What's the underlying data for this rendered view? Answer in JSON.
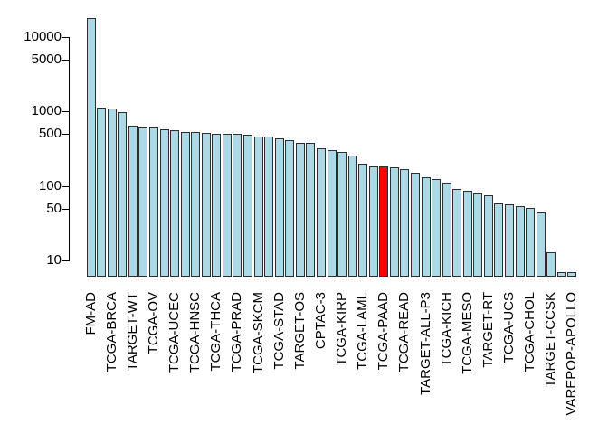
{
  "chart_data": {
    "type": "bar",
    "y_scale": "log",
    "grid": false,
    "legend": "none",
    "ylim": [
      6,
      20000
    ],
    "y_axis": {
      "ticks": [
        10,
        50,
        100,
        500,
        1000,
        5000,
        10000
      ]
    },
    "highlighted_bar": "TCGA-PAAD",
    "bars": [
      {
        "label": "FM-AD",
        "value": 18004
      },
      {
        "label": "",
        "value": 1127
      },
      {
        "label": "TCGA-BRCA",
        "value": 1098
      },
      {
        "label": "",
        "value": 988
      },
      {
        "label": "TARGET-WT",
        "value": 652
      },
      {
        "label": "",
        "value": 617
      },
      {
        "label": "TCGA-OV",
        "value": 608
      },
      {
        "label": "",
        "value": 585
      },
      {
        "label": "TCGA-UCEC",
        "value": 560
      },
      {
        "label": "",
        "value": 537
      },
      {
        "label": "TCGA-HNSC",
        "value": 528
      },
      {
        "label": "",
        "value": 516
      },
      {
        "label": "TCGA-THCA",
        "value": 507
      },
      {
        "label": "",
        "value": 504
      },
      {
        "label": "TCGA-PRAD",
        "value": 500
      },
      {
        "label": "",
        "value": 489
      },
      {
        "label": "TCGA-SKCM",
        "value": 470
      },
      {
        "label": "",
        "value": 461
      },
      {
        "label": "TCGA-STAD",
        "value": 443
      },
      {
        "label": "",
        "value": 412
      },
      {
        "label": "TARGET-OS",
        "value": 383
      },
      {
        "label": "",
        "value": 377
      },
      {
        "label": "CPTAC-3",
        "value": 322
      },
      {
        "label": "",
        "value": 307
      },
      {
        "label": "TCGA-KIRP",
        "value": 291
      },
      {
        "label": "",
        "value": 261
      },
      {
        "label": "TCGA-LAML",
        "value": 200
      },
      {
        "label": "",
        "value": 186
      },
      {
        "label": "TCGA-PAAD",
        "value": 185,
        "highlight": true
      },
      {
        "label": "",
        "value": 179
      },
      {
        "label": "TCGA-READ",
        "value": 172
      },
      {
        "label": "",
        "value": 150
      },
      {
        "label": "TARGET-ALL-P3",
        "value": 131
      },
      {
        "label": "",
        "value": 124
      },
      {
        "label": "TCGA-KICH",
        "value": 113
      },
      {
        "label": "",
        "value": 92
      },
      {
        "label": "TCGA-MESO",
        "value": 87
      },
      {
        "label": "",
        "value": 80
      },
      {
        "label": "TARGET-RT",
        "value": 75
      },
      {
        "label": "",
        "value": 58
      },
      {
        "label": "TCGA-UCS",
        "value": 57
      },
      {
        "label": "",
        "value": 54
      },
      {
        "label": "TCGA-CHOL",
        "value": 51
      },
      {
        "label": "",
        "value": 45
      },
      {
        "label": "TARGET-CCSK",
        "value": 13
      },
      {
        "label": "",
        "value": 7
      },
      {
        "label": "VAREPOP-APOLLO",
        "value": 7
      }
    ],
    "colors": {
      "bar_fill": "#ADD8E6",
      "highlight_fill": "#FF0000",
      "bar_border": "#2E2E2E",
      "axis": "#000000",
      "background": "#FFFFFF"
    }
  }
}
